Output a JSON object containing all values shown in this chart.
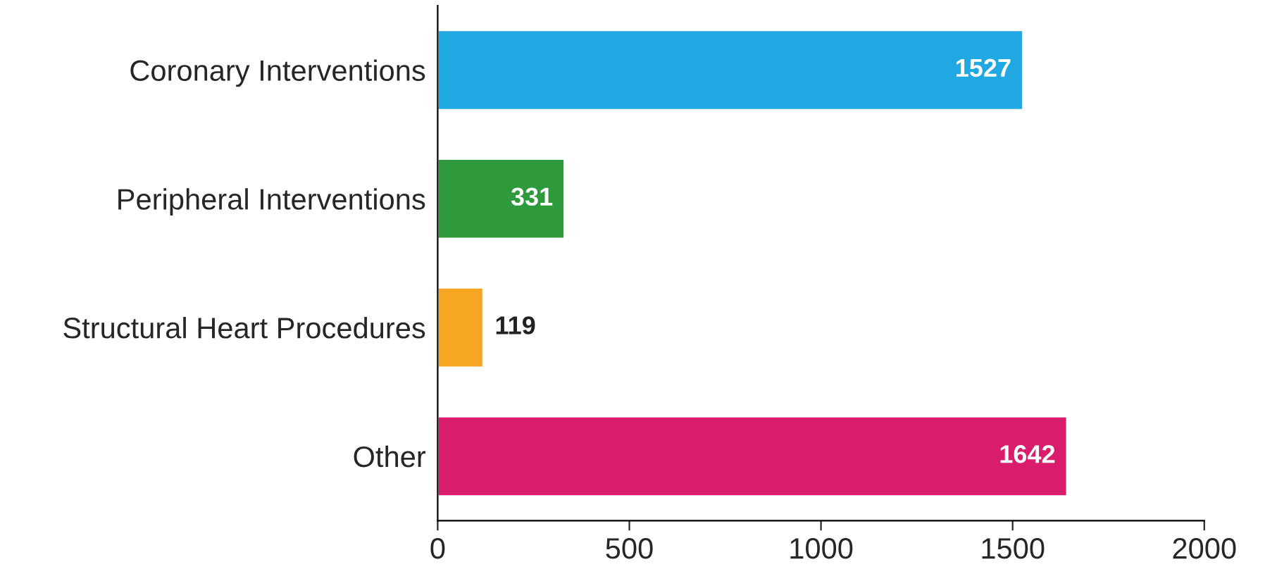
{
  "chart_data": {
    "type": "bar",
    "orientation": "horizontal",
    "categories": [
      "Coronary Interventions",
      "Peripheral Interventions",
      "Structural Heart Procedures",
      "Other"
    ],
    "values": [
      1527,
      331,
      119,
      1642
    ],
    "colors": [
      "#1fa8e2",
      "#2f9a3c",
      "#f6a623",
      "#d91c6c"
    ],
    "xlim": [
      0,
      2000
    ],
    "xticks": [
      0,
      500,
      1000,
      1500,
      2000
    ],
    "data_labels": true,
    "grid": false,
    "legend": false
  }
}
